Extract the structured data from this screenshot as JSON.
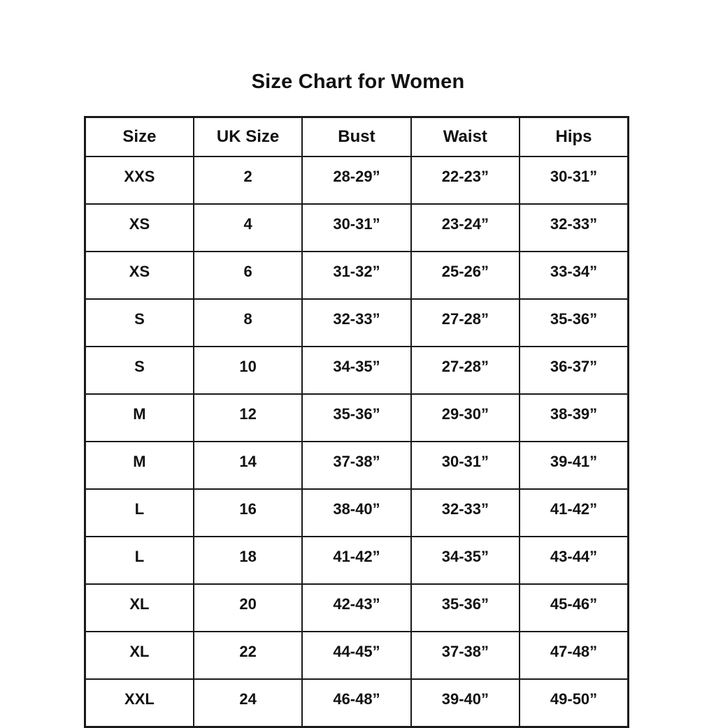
{
  "title": "Size Chart for Women",
  "colors": {
    "background": "#ffffff",
    "text": "#111111",
    "border": "#1a1a1a"
  },
  "chart_data": {
    "type": "table",
    "title": "Size Chart for Women",
    "columns": [
      "Size",
      "UK Size",
      "Bust",
      "Waist",
      "Hips"
    ],
    "rows": [
      [
        "XXS",
        "2",
        "28-29”",
        "22-23”",
        "30-31”"
      ],
      [
        "XS",
        "4",
        "30-31”",
        "23-24”",
        "32-33”"
      ],
      [
        "XS",
        "6",
        "31-32”",
        "25-26”",
        "33-34”"
      ],
      [
        "S",
        "8",
        "32-33”",
        "27-28”",
        "35-36”"
      ],
      [
        "S",
        "10",
        "34-35”",
        "27-28”",
        "36-37”"
      ],
      [
        "M",
        "12",
        "35-36”",
        "29-30”",
        "38-39”"
      ],
      [
        "M",
        "14",
        "37-38”",
        "30-31”",
        "39-41”"
      ],
      [
        "L",
        "16",
        "38-40”",
        "32-33”",
        "41-42”"
      ],
      [
        "L",
        "18",
        "41-42”",
        "34-35”",
        "43-44”"
      ],
      [
        "XL",
        "20",
        "42-43”",
        "35-36”",
        "45-46”"
      ],
      [
        "XL",
        "22",
        "44-45”",
        "37-38”",
        "47-48”"
      ],
      [
        "XXL",
        "24",
        "46-48”",
        "39-40”",
        "49-50”"
      ]
    ]
  }
}
